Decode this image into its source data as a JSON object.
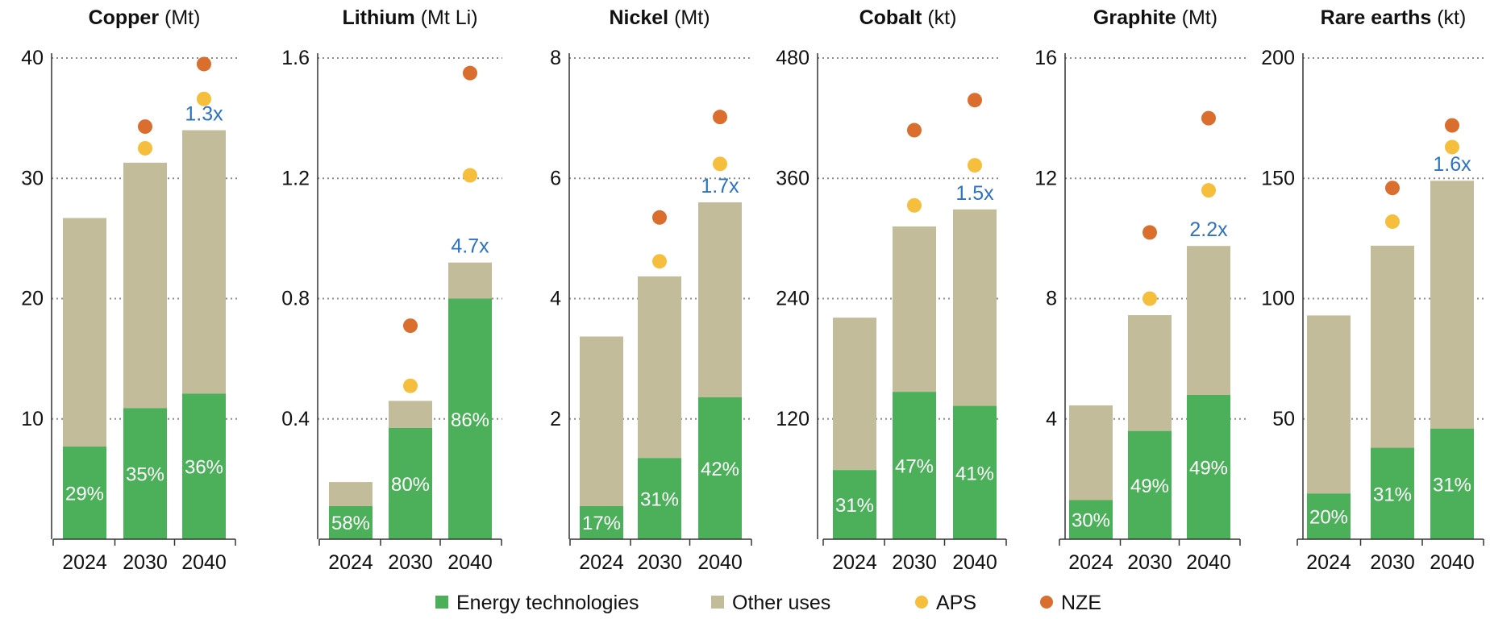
{
  "colors": {
    "energy": "#4caf5a",
    "other": "#c2bc9a",
    "aps": "#f5bf3d",
    "nze": "#d96e2e",
    "multiplier": "#2e72c2",
    "grid": "#8c8c8c",
    "axis": "#333333",
    "text": "#111111"
  },
  "chart_data": [
    {
      "type": "bar",
      "title": "Copper",
      "unit": "(Mt)",
      "categories": [
        "2024",
        "2030",
        "2040"
      ],
      "ylim": [
        0,
        40
      ],
      "ticks": [
        10,
        20,
        30,
        40
      ],
      "tick_labels": [
        "10",
        "20",
        "30",
        "40"
      ],
      "series": [
        {
          "name": "Energy technologies",
          "values": [
            7.7,
            10.9,
            12.1
          ]
        },
        {
          "name": "Other uses",
          "values": [
            19.0,
            20.4,
            21.9
          ]
        }
      ],
      "share_labels": [
        "29%",
        "35%",
        "36%"
      ],
      "aps": [
        null,
        32.5,
        36.6
      ],
      "nze": [
        null,
        34.3,
        39.5
      ],
      "multiplier": "1.3x"
    },
    {
      "type": "bar",
      "title": "Lithium",
      "unit": "(Mt Li)",
      "categories": [
        "2024",
        "2030",
        "2040"
      ],
      "ylim": [
        0,
        1.6
      ],
      "ticks": [
        0.4,
        0.8,
        1.2,
        1.6
      ],
      "tick_labels": [
        "0.4",
        "0.8",
        "1.2",
        "1.6"
      ],
      "series": [
        {
          "name": "Energy technologies",
          "values": [
            0.11,
            0.37,
            0.8
          ]
        },
        {
          "name": "Other uses",
          "values": [
            0.08,
            0.09,
            0.12
          ]
        }
      ],
      "share_labels": [
        "58%",
        "80%",
        "86%"
      ],
      "aps": [
        null,
        0.51,
        1.21
      ],
      "nze": [
        null,
        0.71,
        1.55
      ],
      "multiplier": "4.7x"
    },
    {
      "type": "bar",
      "title": "Nickel",
      "unit": "(Mt)",
      "categories": [
        "2024",
        "2030",
        "2040"
      ],
      "ylim": [
        0,
        8
      ],
      "ticks": [
        2,
        4,
        6,
        8
      ],
      "tick_labels": [
        "2",
        "4",
        "6",
        "8"
      ],
      "series": [
        {
          "name": "Energy technologies",
          "values": [
            0.55,
            1.35,
            2.36
          ]
        },
        {
          "name": "Other uses",
          "values": [
            2.82,
            3.02,
            3.24
          ]
        }
      ],
      "share_labels": [
        "17%",
        "31%",
        "42%"
      ],
      "aps": [
        null,
        4.62,
        6.24
      ],
      "nze": [
        null,
        5.35,
        7.02
      ],
      "multiplier": "1.7x"
    },
    {
      "type": "bar",
      "title": "Cobalt",
      "unit": "(kt)",
      "categories": [
        "2024",
        "2030",
        "2040"
      ],
      "ylim": [
        0,
        480
      ],
      "ticks": [
        120,
        240,
        360,
        480
      ],
      "tick_labels": [
        "120",
        "240",
        "360",
        "480"
      ],
      "series": [
        {
          "name": "Energy technologies",
          "values": [
            69,
            147,
            133
          ]
        },
        {
          "name": "Other uses",
          "values": [
            152,
            165,
            196
          ]
        }
      ],
      "share_labels": [
        "31%",
        "47%",
        "41%"
      ],
      "aps": [
        null,
        333,
        373
      ],
      "nze": [
        null,
        408,
        438
      ],
      "multiplier": "1.5x"
    },
    {
      "type": "bar",
      "title": "Graphite",
      "unit": "(Mt)",
      "categories": [
        "2024",
        "2030",
        "2040"
      ],
      "ylim": [
        0,
        16
      ],
      "ticks": [
        4,
        8,
        12,
        16
      ],
      "tick_labels": [
        "4",
        "8",
        "12",
        "16"
      ],
      "series": [
        {
          "name": "Energy technologies",
          "values": [
            1.3,
            3.6,
            4.8
          ]
        },
        {
          "name": "Other uses",
          "values": [
            3.15,
            3.85,
            4.95
          ]
        }
      ],
      "share_labels": [
        "30%",
        "49%",
        "49%"
      ],
      "aps": [
        null,
        8.0,
        11.6
      ],
      "nze": [
        null,
        10.2,
        14.0
      ],
      "multiplier": "2.2x"
    },
    {
      "type": "bar",
      "title": "Rare earths",
      "unit": "(kt)",
      "categories": [
        "2024",
        "2030",
        "2040"
      ],
      "ylim": [
        0,
        200
      ],
      "ticks": [
        50,
        100,
        150,
        200
      ],
      "tick_labels": [
        "50",
        "100",
        "150",
        "200"
      ],
      "series": [
        {
          "name": "Energy technologies",
          "values": [
            19,
            38,
            46
          ]
        },
        {
          "name": "Other uses",
          "values": [
            74,
            84,
            103
          ]
        }
      ],
      "share_labels": [
        "20%",
        "31%",
        "31%"
      ],
      "aps": [
        null,
        132,
        163
      ],
      "nze": [
        null,
        146,
        172
      ],
      "multiplier": "1.6x"
    }
  ],
  "legend": [
    {
      "label": "Energy technologies",
      "marker": "square",
      "color_key": "energy"
    },
    {
      "label": "Other uses",
      "marker": "square",
      "color_key": "other"
    },
    {
      "label": "APS",
      "marker": "circle",
      "color_key": "aps"
    },
    {
      "label": "NZE",
      "marker": "circle",
      "color_key": "nze"
    }
  ]
}
